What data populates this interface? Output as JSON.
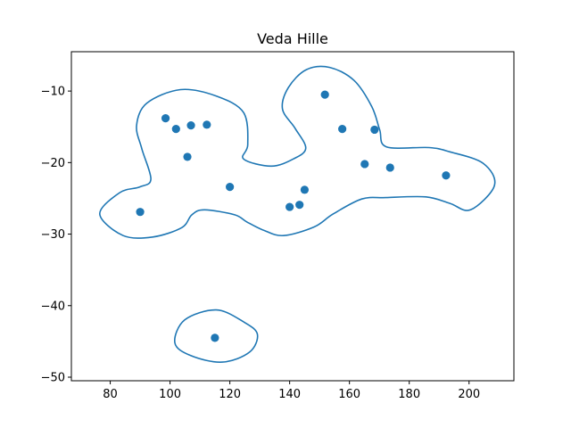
{
  "chart_data": {
    "type": "scatter",
    "title": "Veda Hille",
    "xlabel": "",
    "ylabel": "",
    "xlim": [
      67,
      215
    ],
    "ylim": [
      -50.5,
      -4.5
    ],
    "xticks": [
      80,
      100,
      120,
      140,
      160,
      180,
      200
    ],
    "xtick_labels": [
      "80",
      "100",
      "120",
      "140",
      "160",
      "180",
      "200"
    ],
    "yticks": [
      -10,
      -20,
      -30,
      -40,
      -50
    ],
    "ytick_labels": [
      "−10",
      "−20",
      "−30",
      "−40",
      "−50"
    ],
    "grid": false,
    "points": [
      {
        "x": 98.5,
        "y": -13.8
      },
      {
        "x": 102,
        "y": -15.3
      },
      {
        "x": 107,
        "y": -14.8
      },
      {
        "x": 112.3,
        "y": -14.7
      },
      {
        "x": 105.8,
        "y": -19.2
      },
      {
        "x": 120,
        "y": -23.4
      },
      {
        "x": 90,
        "y": -26.9
      },
      {
        "x": 140,
        "y": -26.2
      },
      {
        "x": 143.3,
        "y": -25.9
      },
      {
        "x": 145,
        "y": -23.8
      },
      {
        "x": 151.8,
        "y": -10.5
      },
      {
        "x": 157.6,
        "y": -15.3
      },
      {
        "x": 168.4,
        "y": -15.4
      },
      {
        "x": 165.1,
        "y": -20.2
      },
      {
        "x": 173.6,
        "y": -20.7
      },
      {
        "x": 192.3,
        "y": -21.8
      },
      {
        "x": 115,
        "y": -44.5
      }
    ],
    "contours": [
      [
        [
          93.6,
          -22.3
        ],
        [
          90.5,
          -18
        ],
        [
          88.8,
          -14.8
        ],
        [
          92.2,
          -11.7
        ],
        [
          103.5,
          -9.8
        ],
        [
          115.5,
          -10.7
        ],
        [
          124.6,
          -13
        ],
        [
          126,
          -17.5
        ],
        [
          124.6,
          -19.5
        ],
        [
          133.8,
          -20.5
        ],
        [
          141.2,
          -19.5
        ],
        [
          145.4,
          -18
        ],
        [
          141.8,
          -15.2
        ],
        [
          137.6,
          -12.5
        ],
        [
          139.6,
          -9.5
        ],
        [
          145.6,
          -7
        ],
        [
          153.4,
          -6.7
        ],
        [
          161.5,
          -8.5
        ],
        [
          167.5,
          -12.2
        ],
        [
          170.1,
          -15.4
        ],
        [
          172.4,
          -17.8
        ],
        [
          186.6,
          -17.9
        ],
        [
          193.6,
          -18.5
        ],
        [
          204.7,
          -20.1
        ],
        [
          208.5,
          -23.2
        ],
        [
          200.5,
          -26.6
        ],
        [
          193.6,
          -25.7
        ],
        [
          185.6,
          -24.8
        ],
        [
          172.2,
          -24.9
        ],
        [
          164.1,
          -25.1
        ],
        [
          154.5,
          -27.2
        ],
        [
          148.2,
          -29
        ],
        [
          138,
          -30.2
        ],
        [
          131.5,
          -29.5
        ],
        [
          125.7,
          -28.3
        ],
        [
          121.6,
          -27.3
        ],
        [
          111.5,
          -26.6
        ],
        [
          107.3,
          -27.3
        ],
        [
          103.9,
          -29.1
        ],
        [
          94.2,
          -30.4
        ],
        [
          84.3,
          -30.2
        ],
        [
          76.5,
          -27.2
        ],
        [
          83.2,
          -24.2
        ],
        [
          89.9,
          -23.4
        ],
        [
          93.6,
          -22.3
        ]
      ],
      [
        [
          115.5,
          -40.6
        ],
        [
          124.7,
          -42.3
        ],
        [
          129.2,
          -44
        ],
        [
          126.6,
          -46.5
        ],
        [
          117.5,
          -47.9
        ],
        [
          107,
          -47
        ],
        [
          101.6,
          -45.2
        ],
        [
          104.9,
          -42
        ],
        [
          115.5,
          -40.6
        ]
      ]
    ],
    "colors": {
      "series": "#1f77b4",
      "axes": "#000000",
      "background": "#ffffff"
    }
  }
}
